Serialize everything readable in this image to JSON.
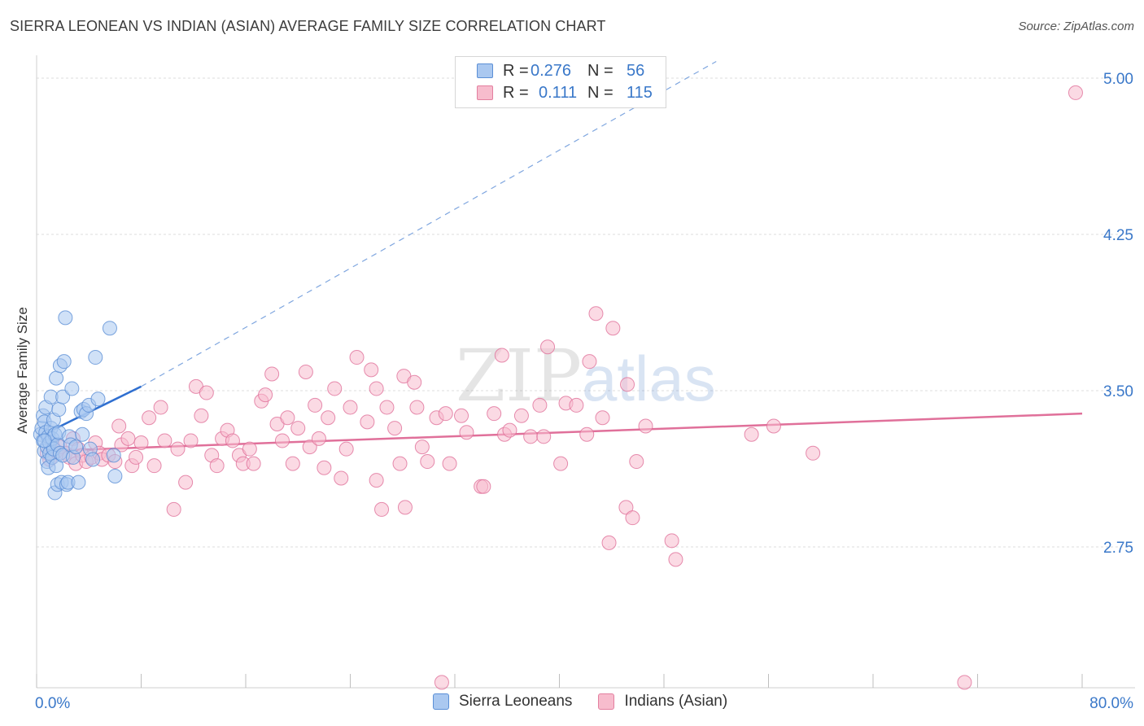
{
  "title": "SIERRA LEONEAN VS INDIAN (ASIAN) AVERAGE FAMILY SIZE CORRELATION CHART",
  "source": "Source: ZipAtlas.com",
  "watermark": {
    "zip": "ZIP",
    "atlas": "atlas"
  },
  "legend": {
    "rows": [
      {
        "r_label": "R =",
        "r_value": "0.276",
        "n_label": "N =",
        "n_value": "56",
        "fill": "#aac8f0",
        "stroke": "#5b8fd6"
      },
      {
        "r_label": "R =",
        "r_value": "0.111",
        "n_label": "N =",
        "n_value": "115",
        "fill": "#f7bccd",
        "stroke": "#e37f9f"
      }
    ]
  },
  "bottom_legend": [
    {
      "label": "Sierra Leoneans",
      "fill": "#aac8f0",
      "stroke": "#5b8fd6"
    },
    {
      "label": "Indians (Asian)",
      "fill": "#f7bccd",
      "stroke": "#e37f9f"
    }
  ],
  "chart_data": {
    "type": "scatter",
    "title": "SIERRA LEONEAN VS INDIAN (ASIAN) AVERAGE FAMILY SIZE CORRELATION CHART",
    "xlabel": "",
    "ylabel": "Average Family Size",
    "xlim": [
      0,
      80
    ],
    "ylim": [
      2.0,
      5.1
    ],
    "x_tick_labels": [
      "0.0%",
      "80.0%"
    ],
    "y_ticks": [
      2.75,
      3.5,
      4.25,
      5.0
    ],
    "y_tick_labels": [
      "2.75",
      "3.50",
      "4.25",
      "5.00"
    ],
    "grid": true,
    "series": [
      {
        "name": "Sierra Leoneans",
        "color": "#5b8fd6",
        "fill": "#aac8f0",
        "trend": {
          "x0": 0.2,
          "y0": 3.28,
          "x1": 8.0,
          "y1": 3.52,
          "dash_to_x": 52.0,
          "dash_to_y": 5.08
        },
        "points": [
          [
            0.3,
            3.29
          ],
          [
            0.4,
            3.32
          ],
          [
            0.5,
            3.26
          ],
          [
            0.5,
            3.38
          ],
          [
            0.6,
            3.21
          ],
          [
            0.6,
            3.35
          ],
          [
            0.7,
            3.3
          ],
          [
            0.7,
            3.42
          ],
          [
            0.8,
            3.23
          ],
          [
            0.8,
            3.16
          ],
          [
            0.9,
            3.28
          ],
          [
            0.9,
            3.13
          ],
          [
            1.0,
            3.25
          ],
          [
            1.0,
            3.2
          ],
          [
            1.1,
            3.32
          ],
          [
            1.1,
            3.47
          ],
          [
            1.2,
            3.18
          ],
          [
            1.2,
            3.27
          ],
          [
            1.3,
            3.36
          ],
          [
            1.3,
            3.22
          ],
          [
            1.4,
            3.01
          ],
          [
            1.4,
            3.29
          ],
          [
            1.5,
            3.56
          ],
          [
            1.5,
            3.14
          ],
          [
            1.6,
            3.05
          ],
          [
            1.6,
            3.24
          ],
          [
            1.7,
            3.41
          ],
          [
            1.7,
            3.3
          ],
          [
            1.8,
            3.62
          ],
          [
            1.8,
            3.2
          ],
          [
            1.9,
            3.06
          ],
          [
            2.0,
            3.47
          ],
          [
            2.0,
            3.19
          ],
          [
            2.1,
            3.64
          ],
          [
            2.2,
            3.85
          ],
          [
            2.3,
            3.05
          ],
          [
            2.4,
            3.06
          ],
          [
            2.5,
            3.28
          ],
          [
            2.6,
            3.24
          ],
          [
            2.7,
            3.51
          ],
          [
            2.8,
            3.18
          ],
          [
            3.0,
            3.23
          ],
          [
            3.2,
            3.06
          ],
          [
            3.4,
            3.4
          ],
          [
            3.5,
            3.29
          ],
          [
            3.6,
            3.41
          ],
          [
            3.8,
            3.39
          ],
          [
            4.0,
            3.43
          ],
          [
            4.1,
            3.22
          ],
          [
            4.3,
            3.17
          ],
          [
            4.5,
            3.66
          ],
          [
            4.7,
            3.46
          ],
          [
            5.6,
            3.8
          ],
          [
            5.9,
            3.19
          ],
          [
            6.0,
            3.09
          ],
          [
            0.6,
            3.26
          ]
        ]
      },
      {
        "name": "Indians (Asian)",
        "color": "#e0709a",
        "fill": "#f7bccd",
        "trend": {
          "x0": 0.5,
          "y0": 3.21,
          "x1": 80.0,
          "y1": 3.39
        },
        "points": [
          [
            0.8,
            3.2
          ],
          [
            1.0,
            3.17
          ],
          [
            1.2,
            3.24
          ],
          [
            1.5,
            3.21
          ],
          [
            1.8,
            3.23
          ],
          [
            2.2,
            3.2
          ],
          [
            2.5,
            3.18
          ],
          [
            2.8,
            3.27
          ],
          [
            3.0,
            3.15
          ],
          [
            3.2,
            3.22
          ],
          [
            3.5,
            3.19
          ],
          [
            3.8,
            3.16
          ],
          [
            4.2,
            3.18
          ],
          [
            4.5,
            3.25
          ],
          [
            4.8,
            3.2
          ],
          [
            5.0,
            3.17
          ],
          [
            5.5,
            3.19
          ],
          [
            6.0,
            3.16
          ],
          [
            6.3,
            3.33
          ],
          [
            6.5,
            3.24
          ],
          [
            7.0,
            3.27
          ],
          [
            7.3,
            3.14
          ],
          [
            7.6,
            3.18
          ],
          [
            8.0,
            3.25
          ],
          [
            8.6,
            3.37
          ],
          [
            9.0,
            3.14
          ],
          [
            9.5,
            3.42
          ],
          [
            9.8,
            3.26
          ],
          [
            10.5,
            2.93
          ],
          [
            10.8,
            3.22
          ],
          [
            11.4,
            3.06
          ],
          [
            11.8,
            3.26
          ],
          [
            12.2,
            3.52
          ],
          [
            12.6,
            3.38
          ],
          [
            13.0,
            3.49
          ],
          [
            13.4,
            3.19
          ],
          [
            13.8,
            3.14
          ],
          [
            14.2,
            3.27
          ],
          [
            14.6,
            3.31
          ],
          [
            15.0,
            3.26
          ],
          [
            15.5,
            3.19
          ],
          [
            15.8,
            3.15
          ],
          [
            16.3,
            3.22
          ],
          [
            16.6,
            3.15
          ],
          [
            17.2,
            3.45
          ],
          [
            17.5,
            3.48
          ],
          [
            18.0,
            3.58
          ],
          [
            18.4,
            3.34
          ],
          [
            18.8,
            3.26
          ],
          [
            19.2,
            3.37
          ],
          [
            19.6,
            3.15
          ],
          [
            20.0,
            3.32
          ],
          [
            20.6,
            3.59
          ],
          [
            20.9,
            3.23
          ],
          [
            21.3,
            3.43
          ],
          [
            21.6,
            3.27
          ],
          [
            22.0,
            3.13
          ],
          [
            22.3,
            3.37
          ],
          [
            22.8,
            3.51
          ],
          [
            23.3,
            3.08
          ],
          [
            23.7,
            3.22
          ],
          [
            24.0,
            3.42
          ],
          [
            24.5,
            3.66
          ],
          [
            25.3,
            3.35
          ],
          [
            25.6,
            3.6
          ],
          [
            26.0,
            3.07
          ],
          [
            26.4,
            2.93
          ],
          [
            26.8,
            3.42
          ],
          [
            27.4,
            3.32
          ],
          [
            27.8,
            3.15
          ],
          [
            28.1,
            3.57
          ],
          [
            28.2,
            2.94
          ],
          [
            28.9,
            3.54
          ],
          [
            29.1,
            3.42
          ],
          [
            29.5,
            3.23
          ],
          [
            29.9,
            3.16
          ],
          [
            30.6,
            3.37
          ],
          [
            31.0,
            2.1
          ],
          [
            31.3,
            3.39
          ],
          [
            31.6,
            3.15
          ],
          [
            32.5,
            3.38
          ],
          [
            32.9,
            3.3
          ],
          [
            34.0,
            3.04
          ],
          [
            34.2,
            3.04
          ],
          [
            35.0,
            3.39
          ],
          [
            35.6,
            3.67
          ],
          [
            35.8,
            3.29
          ],
          [
            36.2,
            3.31
          ],
          [
            37.1,
            3.38
          ],
          [
            37.8,
            3.28
          ],
          [
            38.5,
            3.43
          ],
          [
            39.1,
            3.71
          ],
          [
            40.1,
            3.15
          ],
          [
            40.5,
            3.44
          ],
          [
            41.3,
            3.43
          ],
          [
            42.1,
            3.29
          ],
          [
            42.8,
            3.87
          ],
          [
            43.3,
            3.37
          ],
          [
            43.8,
            2.77
          ],
          [
            44.1,
            3.8
          ],
          [
            45.1,
            2.94
          ],
          [
            45.2,
            3.53
          ],
          [
            45.6,
            2.89
          ],
          [
            45.9,
            3.16
          ],
          [
            46.6,
            3.33
          ],
          [
            48.6,
            2.78
          ],
          [
            48.9,
            2.69
          ],
          [
            54.7,
            3.29
          ],
          [
            56.4,
            3.33
          ],
          [
            59.4,
            3.2
          ],
          [
            71.0,
            2.1
          ],
          [
            79.5,
            4.93
          ],
          [
            26.0,
            3.51
          ],
          [
            38.8,
            3.28
          ],
          [
            42.3,
            3.64
          ]
        ]
      }
    ]
  }
}
